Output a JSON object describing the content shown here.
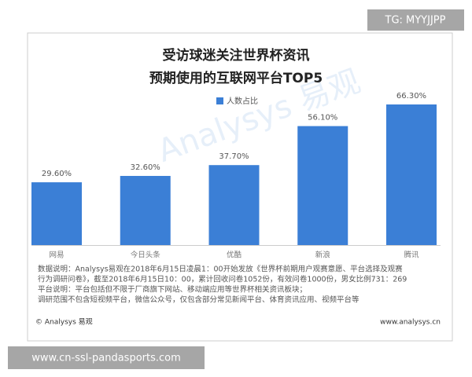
{
  "chart_data": {
    "type": "bar",
    "title": [
      "受访球迷关注世界杯资讯",
      "预期使用的互联网平台TOP5"
    ],
    "categories": [
      "网易",
      "今日头条",
      "优酷",
      "新浪",
      "腾讯"
    ],
    "series": [
      {
        "name": "人数占比",
        "color": "#3b7fd6",
        "values": [
          29.6,
          32.6,
          37.7,
          56.1,
          66.3
        ],
        "value_labels": [
          "29.60%",
          "32.60%",
          "37.70%",
          "56.10%",
          "66.30%"
        ]
      }
    ]
  },
  "watermark": "Analysys 易观",
  "notes": [
    "数据说明：Analysys易观在2018年6月15日凌晨1：00开始发放《世界杯前期用户观赛意愿、平台选择及观赛",
    "行为调研问卷》，截至2018年6月15日10：00，累计回收问卷1052份，有效问卷1000份，男女比例731：269",
    "平台说明：平台包括但不限于厂商旗下网站、移动端应用等世界杯相关资讯板块；",
    "调研范围不包含短视频平台，微信公众号，仅包含部分常见新闻平台、体育资讯应用、视频平台等"
  ],
  "footer": {
    "left": "© Analysys 易观",
    "right": "www.analysys.cn"
  },
  "overlays": {
    "top_right": "TG: MYYJJPP",
    "bottom_left": "www.cn-ssl-pandasports.com"
  }
}
